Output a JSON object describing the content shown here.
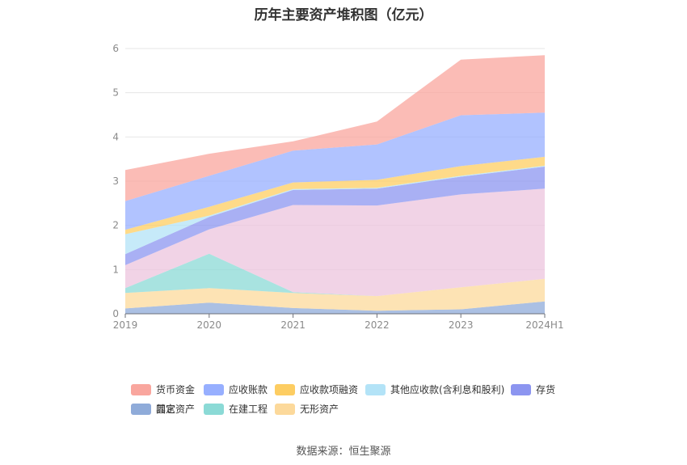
{
  "chart_data": {
    "type": "area",
    "stacked": true,
    "title": "历年主要资产堆积图（亿元）",
    "categories": [
      "2019",
      "2020",
      "2021",
      "2022",
      "2023",
      "2024H1"
    ],
    "ylim": [
      0,
      6
    ],
    "yticks": [
      "0",
      "1",
      "2",
      "3",
      "4",
      "5",
      "6"
    ],
    "grid": true,
    "legend_position": "bottom",
    "series": [
      {
        "name": "其它",
        "color": "#8fabd9",
        "values": [
          0.12,
          0.25,
          0.13,
          0.07,
          0.1,
          0.28
        ]
      },
      {
        "name": "无形资产",
        "color": "#fcd99b",
        "values": [
          0.35,
          0.33,
          0.34,
          0.33,
          0.5,
          0.51
        ]
      },
      {
        "name": "在建工程",
        "color": "#8bdad6",
        "values": [
          0.11,
          0.78,
          0.02,
          0.0,
          0.0,
          0.0
        ]
      },
      {
        "name": "固定资产",
        "color": "#ecc4de",
        "values": [
          0.52,
          0.55,
          1.97,
          2.05,
          2.1,
          2.04
        ]
      },
      {
        "name": "存货",
        "color": "#8c95f0",
        "values": [
          0.25,
          0.28,
          0.34,
          0.38,
          0.4,
          0.5
        ]
      },
      {
        "name": "其他应收款(含利息和股利)",
        "color": "#b3e3f7",
        "values": [
          0.45,
          0.03,
          0.02,
          0.02,
          0.02,
          0.02
        ]
      },
      {
        "name": "应收款项融资",
        "color": "#fdcd62",
        "values": [
          0.1,
          0.2,
          0.15,
          0.18,
          0.22,
          0.2
        ]
      },
      {
        "name": "应收账款",
        "color": "#97afff",
        "values": [
          0.65,
          0.7,
          0.72,
          0.8,
          1.15,
          1.0
        ]
      },
      {
        "name": "货币资金",
        "color": "#f9a69e",
        "values": [
          0.7,
          0.5,
          0.21,
          0.52,
          1.26,
          1.3
        ]
      }
    ],
    "legend_order": [
      "货币资金",
      "应收账款",
      "应收款项融资",
      "其他应收款(含利息和股利)",
      "存货",
      "固定资产",
      "在建工程",
      "无形资产",
      "其它"
    ]
  },
  "legend": {
    "items": [
      {
        "label": "货币资金",
        "color": "#f9a69e"
      },
      {
        "label": "应收账款",
        "color": "#97afff"
      },
      {
        "label": "应收款项融资",
        "color": "#fdcd62"
      },
      {
        "label": "其他应收款(含利息和股利)",
        "color": "#b3e3f7"
      },
      {
        "label": "存货",
        "color": "#8c95f0"
      },
      {
        "label": "固定资产",
        "color": "#ecc4de"
      },
      {
        "label": "在建工程",
        "color": "#8bdad6"
      },
      {
        "label": "无形资产",
        "color": "#fcd99b"
      },
      {
        "label": "其它",
        "color": "#8fabd9"
      }
    ]
  },
  "source": "数据来源：恒生聚源"
}
